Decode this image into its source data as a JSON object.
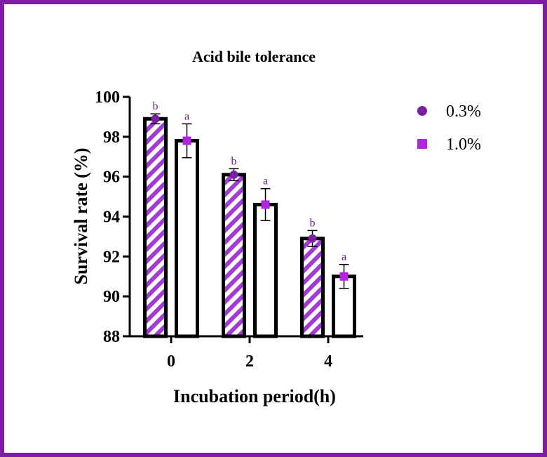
{
  "chart_data": {
    "type": "bar",
    "title": "Acid bile tolerance",
    "xlabel": "Incubation period(h)",
    "ylabel": "Survival rate (%)",
    "categories": [
      "0",
      "2",
      "4"
    ],
    "ylim": [
      88,
      100
    ],
    "yticks": [
      88,
      90,
      92,
      94,
      96,
      98,
      100
    ],
    "grid": false,
    "legend_position": "top-right",
    "series": [
      {
        "name": "0.3%",
        "pattern": "hatched",
        "marker": "circle",
        "values": [
          98.9,
          96.1,
          92.9
        ],
        "errors": [
          0.25,
          0.3,
          0.4
        ],
        "labels": [
          "b",
          "b",
          "b"
        ]
      },
      {
        "name": "1.0%",
        "pattern": "solid-white",
        "marker": "square",
        "values": [
          97.8,
          94.6,
          91.0
        ],
        "errors": [
          0.85,
          0.8,
          0.6
        ],
        "labels": [
          "a",
          "a",
          "a"
        ]
      }
    ]
  },
  "colors": {
    "frame": "#7a1fa2",
    "hatch": "#a33ad6",
    "marker_circle": "#7b1fa2",
    "marker_square": "#b026e0",
    "sig_label": "#6a1b9a",
    "axis": "#000000"
  }
}
